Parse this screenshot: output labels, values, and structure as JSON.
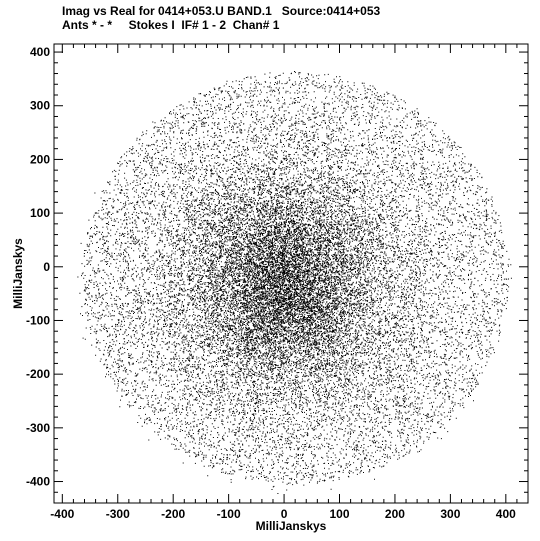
{
  "title_line1": "Imag vs Real for 0414+053.U BAND.1   Source:0414+053",
  "title_line2": "Ants * - *     Stokes I  IF# 1 - 2  Chan# 1",
  "chart_data": {
    "type": "scatter",
    "xlabel": "MilliJanskys",
    "ylabel": "MilliJanskys",
    "xlim": [
      -415,
      440
    ],
    "ylim": [
      -440,
      415
    ],
    "xticks": [
      -400,
      -300,
      -200,
      -100,
      0,
      100,
      200,
      300,
      400
    ],
    "yticks": [
      -400,
      -300,
      -200,
      -100,
      0,
      100,
      200,
      300,
      400
    ],
    "series": [
      {
        "marker_color": "#000000",
        "point_count": 26000,
        "distribution": "dense roughly circular cloud centered near (0, -30), radius approx 380 MilliJanskys, densest near center"
      }
    ]
  }
}
